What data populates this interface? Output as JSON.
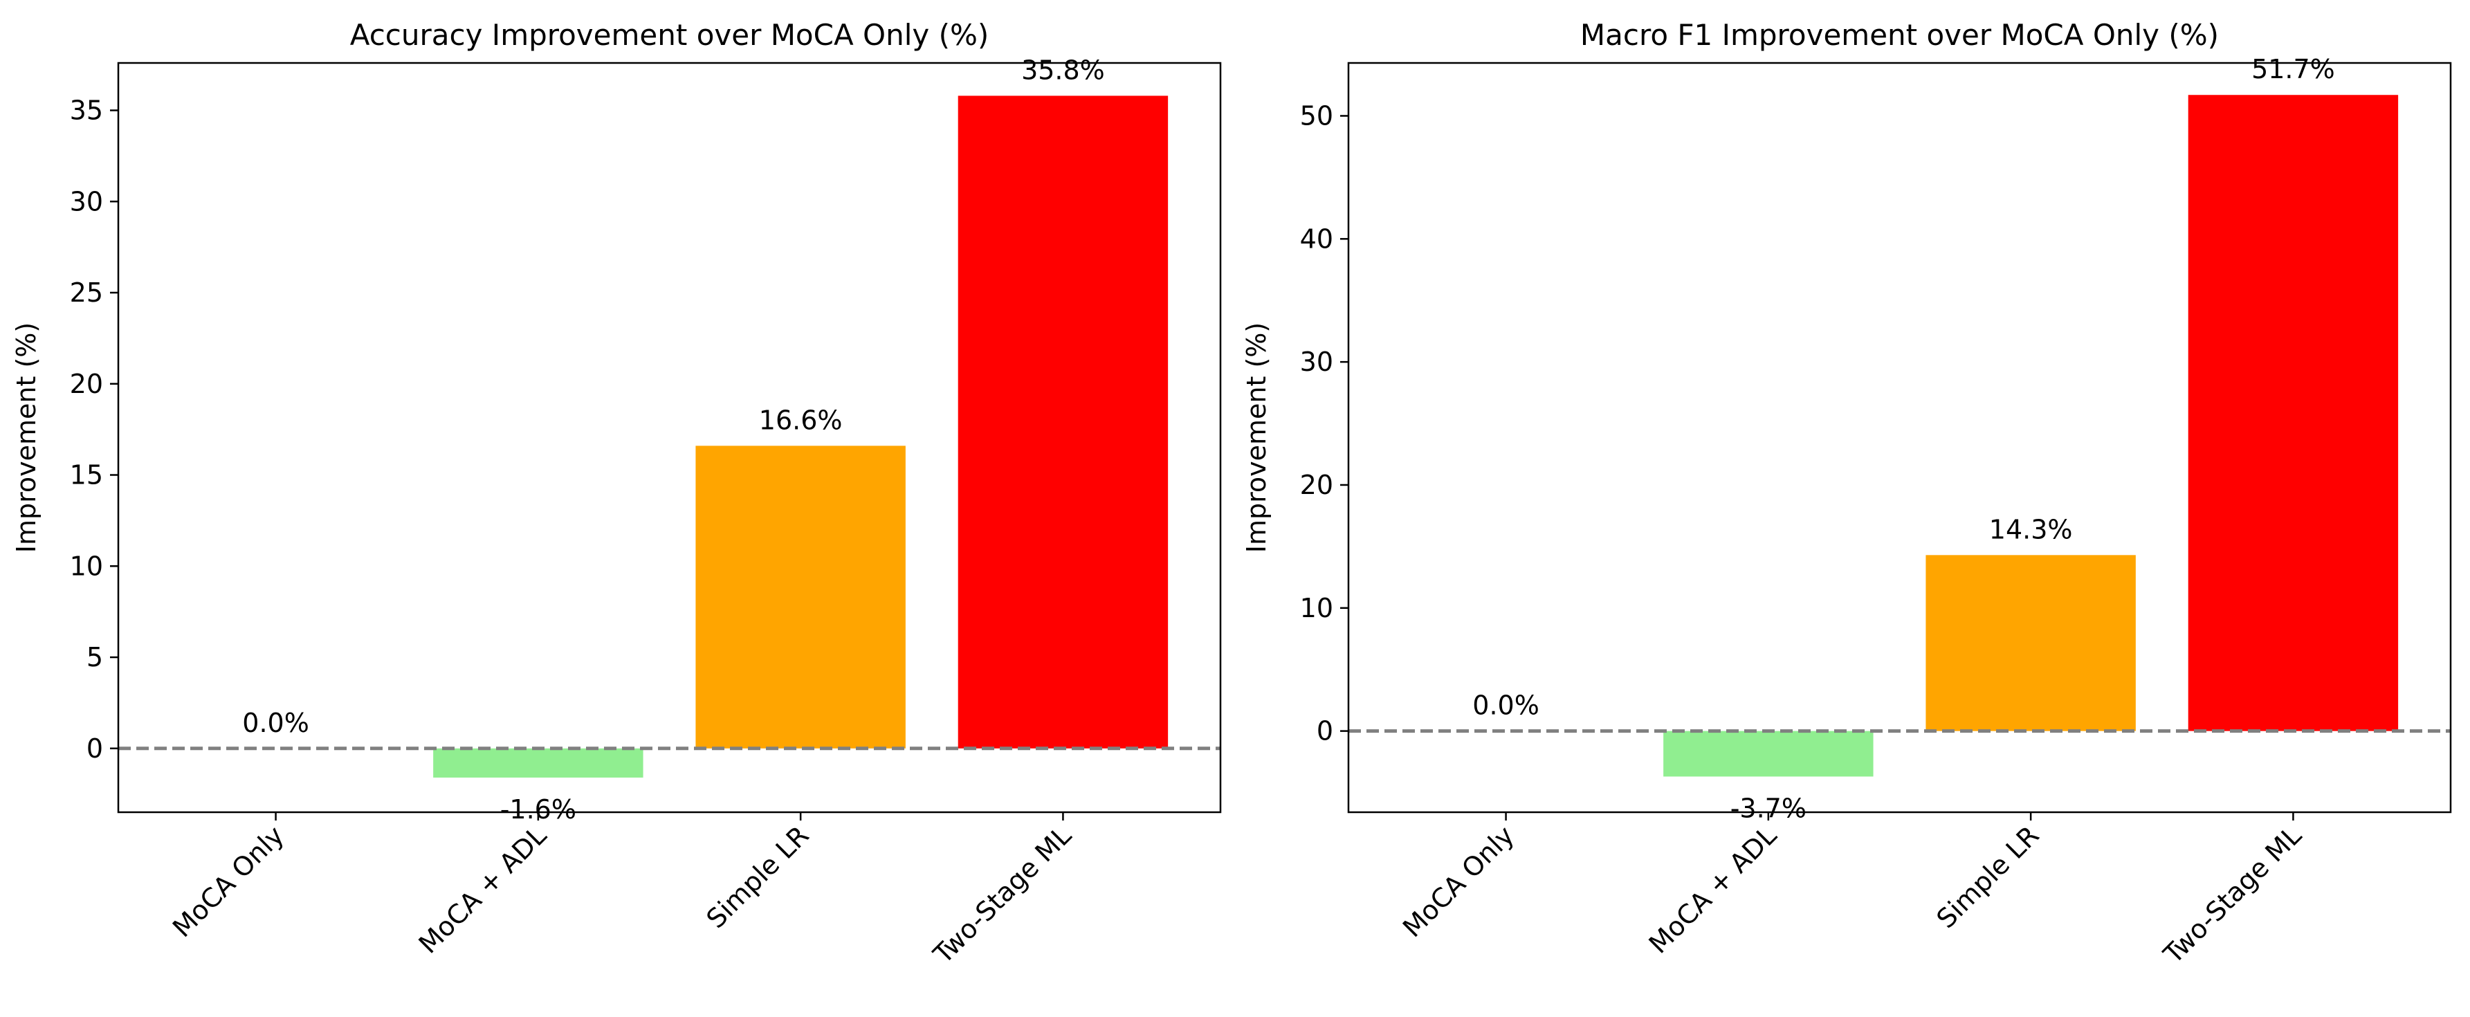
{
  "chart_data": [
    {
      "type": "bar",
      "title": "Accuracy Improvement over MoCA Only (%)",
      "xlabel": "",
      "ylabel": "Improvement (%)",
      "categories": [
        "MoCA Only",
        "MoCA + ADL",
        "Simple LR",
        "Two-Stage ML"
      ],
      "values": [
        0.0,
        -1.6,
        16.6,
        35.8
      ],
      "value_labels": [
        "0.0%",
        "-1.6%",
        "16.6%",
        "35.8%"
      ],
      "colors": [
        "#90ee90",
        "#90ee90",
        "#ffa500",
        "#ff0000"
      ],
      "ylim": [
        -3.5,
        37.6
      ],
      "yticks": [
        0,
        5,
        10,
        15,
        20,
        25,
        30,
        35
      ],
      "reference_line": {
        "y": 0,
        "style": "dashed",
        "color": "#808080"
      },
      "grid": false
    },
    {
      "type": "bar",
      "title": "Macro F1 Improvement over MoCA Only (%)",
      "xlabel": "",
      "ylabel": "Improvement (%)",
      "categories": [
        "MoCA Only",
        "MoCA + ADL",
        "Simple LR",
        "Two-Stage ML"
      ],
      "values": [
        0.0,
        -3.7,
        14.3,
        51.7
      ],
      "value_labels": [
        "0.0%",
        "-3.7%",
        "14.3%",
        "51.7%"
      ],
      "colors": [
        "#90ee90",
        "#90ee90",
        "#ffa500",
        "#ff0000"
      ],
      "ylim": [
        -6.6,
        54.3
      ],
      "yticks": [
        0,
        10,
        20,
        30,
        40,
        50
      ],
      "reference_line": {
        "y": 0,
        "style": "dashed",
        "color": "#808080"
      },
      "grid": false
    }
  ]
}
